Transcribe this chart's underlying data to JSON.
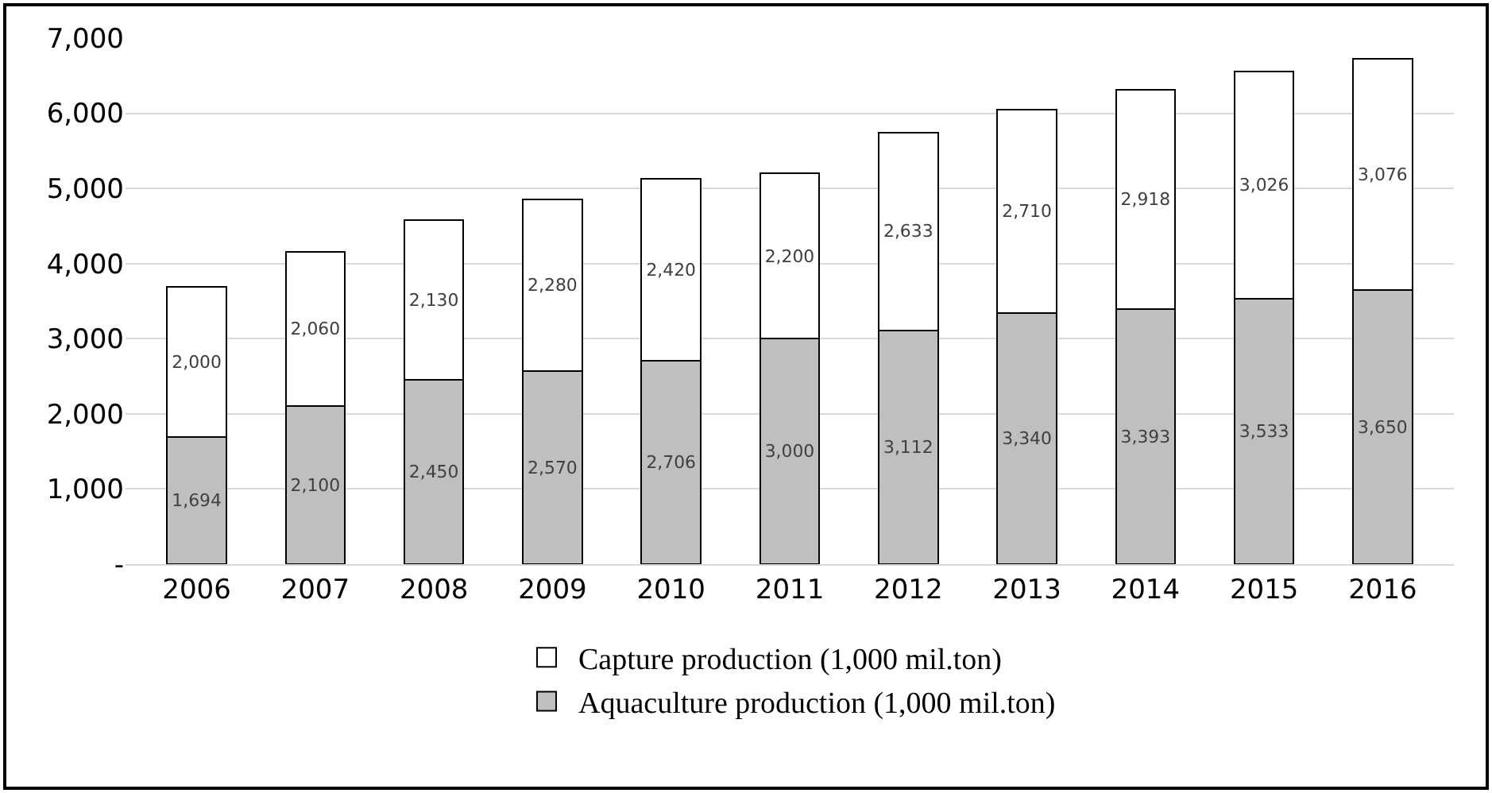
{
  "chart_data": {
    "type": "bar",
    "stacked": true,
    "categories": [
      "2006",
      "2007",
      "2008",
      "2009",
      "2010",
      "2011",
      "2012",
      "2013",
      "2014",
      "2015",
      "2016"
    ],
    "series": [
      {
        "name": "Aquaculture production (1,000 mil.ton)",
        "color": "#bfbfbf",
        "values": [
          1694,
          2100,
          2450,
          2570,
          2706,
          3000,
          3112,
          3340,
          3393,
          3533,
          3650
        ],
        "value_labels": [
          "1,694",
          "2,100",
          "2,450",
          "2,570",
          "2,706",
          "3,000",
          "3,112",
          "3,340",
          "3,393",
          "3,533",
          "3,650"
        ]
      },
      {
        "name": "Capture production (1,000 mil.ton)",
        "color": "#ffffff",
        "values": [
          2000,
          2060,
          2130,
          2280,
          2420,
          2200,
          2633,
          2710,
          2918,
          3026,
          3076
        ],
        "value_labels": [
          "2,000",
          "2,060",
          "2,130",
          "2,280",
          "2,420",
          "2,200",
          "2,633",
          "2,710",
          "2,918",
          "3,026",
          "3,076"
        ]
      }
    ],
    "ylim": [
      0,
      7000
    ],
    "yticks": [
      {
        "value": 0,
        "label": "-"
      },
      {
        "value": 1000,
        "label": "1,000"
      },
      {
        "value": 2000,
        "label": "2,000"
      },
      {
        "value": 3000,
        "label": "3,000"
      },
      {
        "value": 4000,
        "label": "4,000"
      },
      {
        "value": 5000,
        "label": "5,000"
      },
      {
        "value": 6000,
        "label": "6,000"
      },
      {
        "value": 7000,
        "label": "7,000"
      }
    ],
    "grid": "y",
    "legend": "bottom"
  }
}
